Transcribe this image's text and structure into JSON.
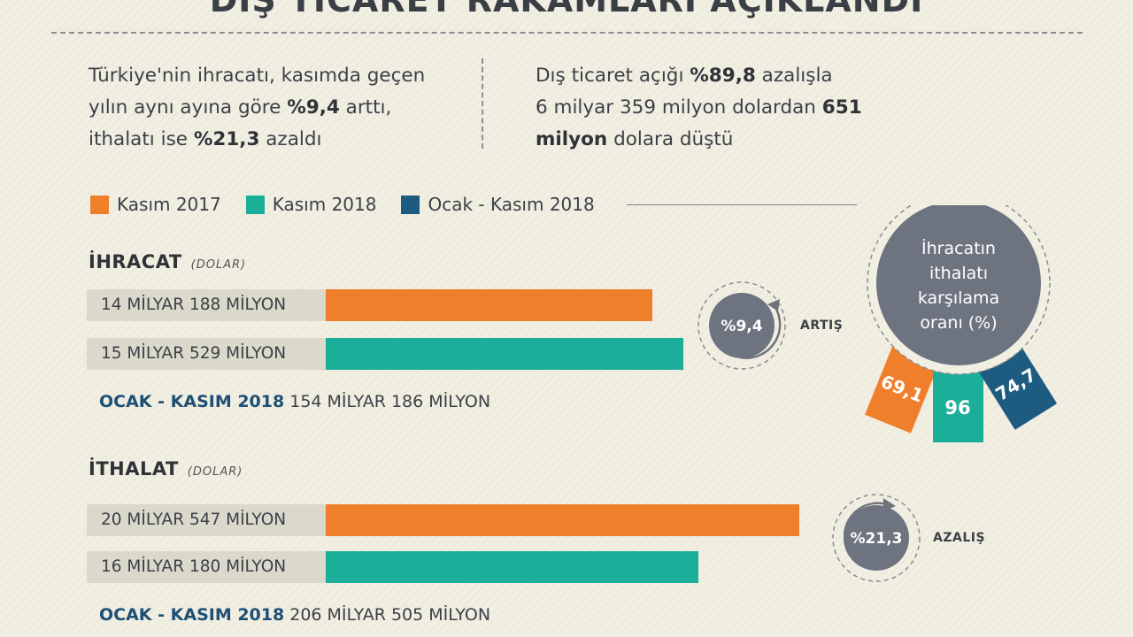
{
  "title": "DIŞ TİCARET RAKAMLARI AÇIKLANDI",
  "intro_left": {
    "l1": "Türkiye'nin ihracatı, kasımda geçen",
    "l2a": "yılın aynı ayına göre ",
    "l2b": "%9,4",
    "l2c": " arttı,",
    "l3a": "ithalatı ise ",
    "l3b": "%21,3",
    "l3c": " azaldı"
  },
  "intro_right": {
    "l1a": "Dış ticaret açığı ",
    "l1b": "%89,8",
    "l1c": " azalışla",
    "l2a": "6 milyar 359 milyon dolardan ",
    "l2b": "651",
    "l3a": "milyon",
    "l3b": " dolara düştü"
  },
  "legend": [
    {
      "label": "Kasım 2017",
      "color": "#f07f2b"
    },
    {
      "label": "Kasım 2018",
      "color": "#1baf9a"
    },
    {
      "label": "Ocak - Kasım 2018",
      "color": "#1e5b80"
    }
  ],
  "chart_data": [
    {
      "type": "bar",
      "title": "İHRACAT",
      "unit": "(DOLAR)",
      "series": [
        {
          "name": "Kasım 2017",
          "label": "14 MİLYAR 188 MİLYON",
          "value": 14188,
          "color": "#f07f2b"
        },
        {
          "name": "Kasım 2018",
          "label": "15 MİLYAR 529 MİLYON",
          "value": 15529,
          "color": "#1baf9a"
        }
      ],
      "total": {
        "label": "OCAK - KASIM 2018",
        "value": "154 MİLYAR 186 MİLYON"
      },
      "change": {
        "value": "%9,4",
        "label": "ARTIŞ"
      }
    },
    {
      "type": "bar",
      "title": "İTHALAT",
      "unit": "(DOLAR)",
      "series": [
        {
          "name": "Kasım 2017",
          "label": "20 MİLYAR 547 MİLYON",
          "value": 20547,
          "color": "#f07f2b"
        },
        {
          "name": "Kasım 2018",
          "label": "16 MİLYAR 180 MİLYON",
          "value": 16180,
          "color": "#1baf9a"
        }
      ],
      "total": {
        "label": "OCAK - KASIM 2018",
        "value": "206 MİLYAR 505 MİLYON"
      },
      "change": {
        "value": "%21,3",
        "label": "AZALIŞ"
      }
    },
    {
      "type": "badge",
      "title_lines": [
        "İhracatın",
        "ithalatı",
        "karşılama",
        "oranı (%)"
      ],
      "ribbons": [
        {
          "name": "Kasım 2017",
          "value": "69,1",
          "color": "#f07f2b"
        },
        {
          "name": "Kasım 2018",
          "value": "96",
          "color": "#1baf9a"
        },
        {
          "name": "Ocak - Kasım 2018",
          "value": "74,7",
          "color": "#1e5b80"
        }
      ]
    }
  ]
}
